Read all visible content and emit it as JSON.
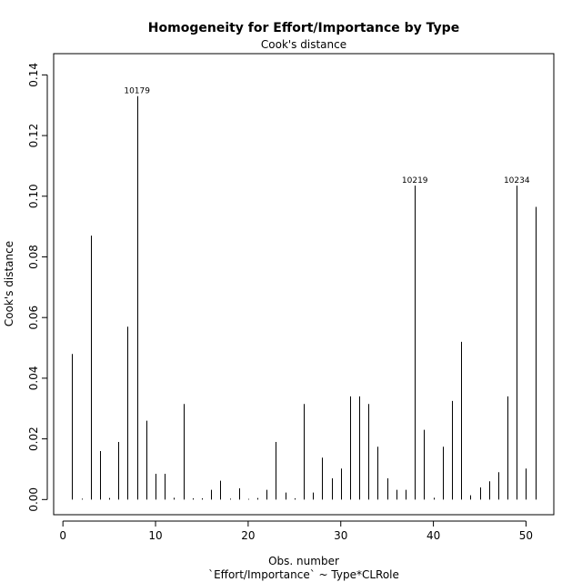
{
  "chart_data": {
    "type": "bar",
    "title": "Homogeneity for Effort/Importance by Type",
    "subtitle": "Cook's distance",
    "xlabel": "Obs. number",
    "xlabel2": "`Effort/Importance` ~ Type*CLRole",
    "ylabel": "Cook's distance",
    "xlim": [
      -1,
      53
    ],
    "ylim": [
      -0.005,
      0.147
    ],
    "xticks": [
      0,
      10,
      20,
      30,
      40,
      50
    ],
    "yticks": [
      "0.00",
      "0.02",
      "0.04",
      "0.06",
      "0.08",
      "0.10",
      "0.12",
      "0.14"
    ],
    "grid": false,
    "series": [
      {
        "x": [
          1,
          2,
          3,
          4,
          5,
          6,
          7,
          8,
          9,
          10,
          11,
          12,
          13,
          14,
          15,
          16,
          17,
          18,
          19,
          20,
          21,
          22,
          23,
          24,
          25,
          26,
          27,
          28,
          29,
          30,
          31,
          32,
          33,
          34,
          35,
          36,
          37,
          38,
          39,
          40,
          41,
          42,
          43,
          44,
          45,
          46,
          47,
          48,
          49,
          50,
          51
        ],
        "values": [
          0.048,
          0.0003,
          0.087,
          0.016,
          0.0005,
          0.019,
          0.057,
          0.133,
          0.026,
          0.0085,
          0.0085,
          0.0006,
          0.0315,
          0.0004,
          0.0004,
          0.0032,
          0.0062,
          0.0003,
          0.0037,
          0.0002,
          0.0005,
          0.0032,
          0.019,
          0.0023,
          0.0004,
          0.0315,
          0.0023,
          0.0138,
          0.007,
          0.0102,
          0.034,
          0.034,
          0.0315,
          0.0174,
          0.007,
          0.0032,
          0.0032,
          0.1035,
          0.023,
          0.0006,
          0.0174,
          0.0325,
          0.052,
          0.0014,
          0.004,
          0.006,
          0.009,
          0.034,
          0.1035,
          0.0102,
          0.0965
        ]
      }
    ],
    "annotations": [
      {
        "x": 8,
        "y": 0.133,
        "text": "10179"
      },
      {
        "x": 38,
        "y": 0.1035,
        "text": "10219"
      },
      {
        "x": 49,
        "y": 0.1035,
        "text": "10234"
      }
    ]
  }
}
